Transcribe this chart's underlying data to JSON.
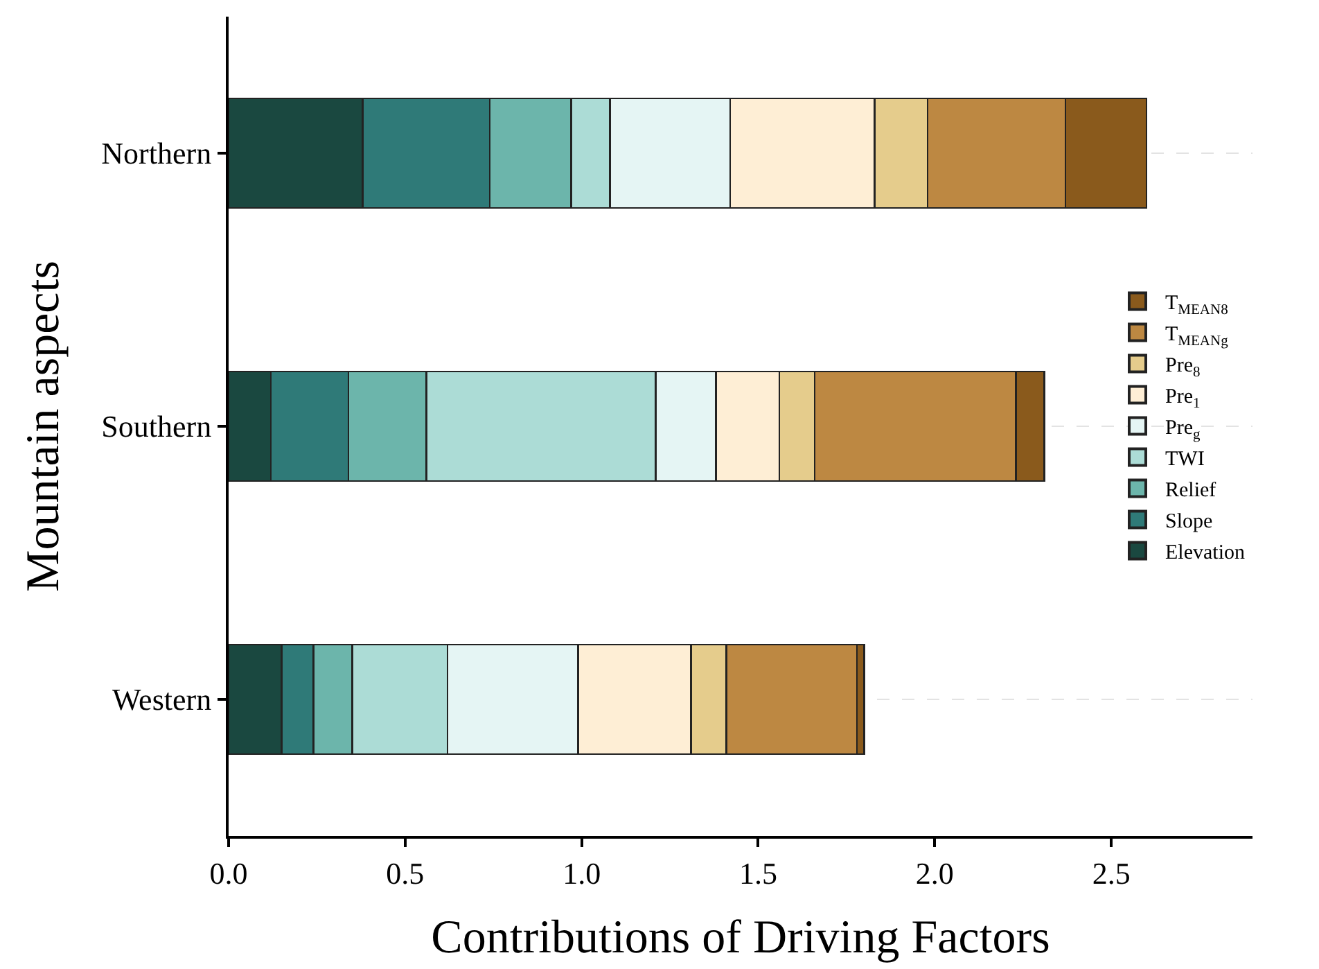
{
  "chart_data": {
    "type": "bar",
    "orientation": "horizontal",
    "stacked": true,
    "xlabel": "Contributions of Driving Factors",
    "ylabel": "Mountain aspects",
    "categories": [
      "Northern",
      "Southern",
      "Western"
    ],
    "series": [
      {
        "name": "Elevation",
        "color": "#1a4840",
        "values": [
          0.38,
          0.12,
          0.15
        ]
      },
      {
        "name": "Slope",
        "color": "#2f7a78",
        "values": [
          0.36,
          0.22,
          0.09
        ]
      },
      {
        "name": "Relief",
        "color": "#6cb5ab",
        "values": [
          0.23,
          0.22,
          0.11
        ]
      },
      {
        "name": "TWI",
        "color": "#acdcd6",
        "values": [
          0.11,
          0.65,
          0.27
        ]
      },
      {
        "name": "Pre$_{g}$",
        "color": "#e5f5f4",
        "values": [
          0.34,
          0.17,
          0.37
        ]
      },
      {
        "name": "Pre$_{1}$",
        "color": "#feeed5",
        "values": [
          0.41,
          0.18,
          0.32
        ]
      },
      {
        "name": "Pre$_{8}$",
        "color": "#e5cc8c",
        "values": [
          0.15,
          0.1,
          0.1
        ]
      },
      {
        "name": "T$_{MEANg}$",
        "color": "#bd8842",
        "values": [
          0.39,
          0.57,
          0.37
        ]
      },
      {
        "name": "T$_{MEAN8}$",
        "color": "#8a5a1c",
        "values": [
          0.23,
          0.08,
          0.02
        ]
      }
    ],
    "xlim": [
      0,
      2.9
    ],
    "xticks": [
      {
        "value": 0,
        "label": "0.0"
      },
      0.5,
      {
        "value": 1,
        "label": "1.0"
      },
      1.5,
      {
        "value": 2,
        "label": "2.0"
      },
      2.5
    ],
    "grid": "y",
    "legend": "right"
  }
}
